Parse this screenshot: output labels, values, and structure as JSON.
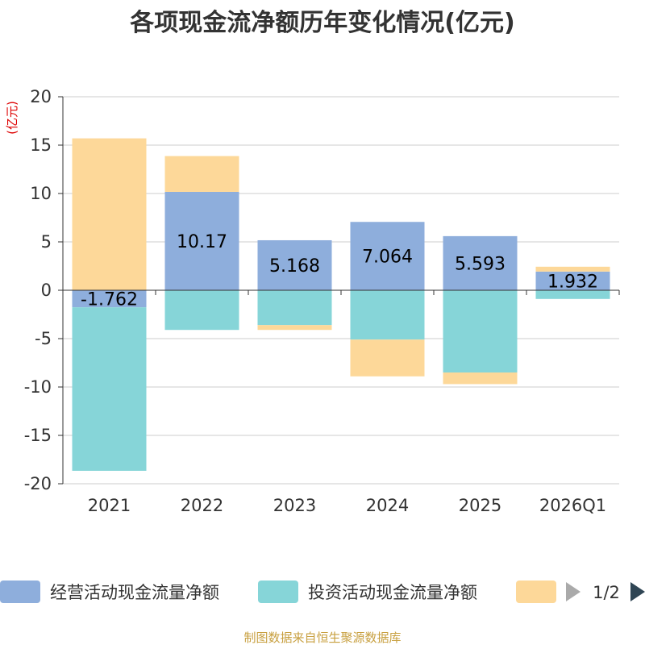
{
  "chart_data": {
    "type": "bar",
    "stacked": true,
    "title": "各项现金流净额历年变化情况(亿元)",
    "ylabel": "(亿元)",
    "ylim": [
      -20,
      20
    ],
    "yticks": [
      20,
      15,
      10,
      5,
      0,
      -5,
      -10,
      -15,
      -20
    ],
    "categories": [
      "2021",
      "2022",
      "2023",
      "2024",
      "2025",
      "2026Q1"
    ],
    "series": [
      {
        "name": "经营活动现金流量净额",
        "color": "#8eaedc",
        "values": [
          -1.762,
          10.17,
          5.168,
          7.064,
          5.593,
          1.932
        ],
        "labels": [
          "-1.762",
          "10.17",
          "5.168",
          "7.064",
          "5.593",
          "1.932"
        ]
      },
      {
        "name": "投资活动现金流量净额",
        "color": "#86d5d8",
        "values": [
          -16.9,
          -4.1,
          -3.6,
          -5.1,
          -8.5,
          -0.9
        ]
      },
      {
        "name": "",
        "color": "#fdd899",
        "values": [
          15.7,
          3.7,
          -0.5,
          -3.8,
          -1.2,
          0.5
        ]
      }
    ],
    "legend": {
      "position": "bottom",
      "page": "1/2"
    },
    "source": "制图数据来自恒生聚源数据库"
  }
}
